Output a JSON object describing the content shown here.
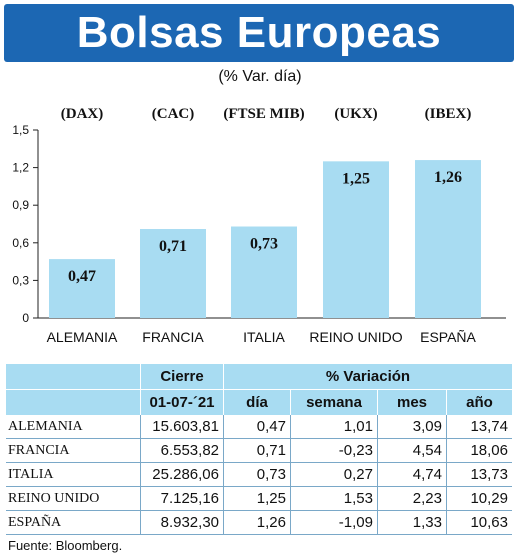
{
  "title": "Bolsas Europeas",
  "subtitle": "(% Var. día)",
  "chart_data": {
    "type": "bar",
    "title": "Bolsas Europeas",
    "subtitle": "(% Var. día)",
    "categories": [
      "ALEMANIA",
      "FRANCIA",
      "ITALIA",
      "REINO UNIDO",
      "ESPAÑA"
    ],
    "indices": [
      "(DAX)",
      "(CAC)",
      "(FTSE MIB)",
      "(UKX)",
      "(IBEX)"
    ],
    "values": [
      0.47,
      0.71,
      0.73,
      1.25,
      1.26
    ],
    "value_labels": [
      "0,47",
      "0,71",
      "0,73",
      "1,25",
      "1,26"
    ],
    "ylim": [
      0,
      1.5
    ],
    "yticks": [
      0,
      0.3,
      0.6,
      0.9,
      1.2,
      1.5
    ],
    "ytick_labels": [
      "0",
      "0,3",
      "0,6",
      "0,9",
      "1,2",
      "1,5"
    ],
    "bar_color": "#a8dcf2",
    "grid": false
  },
  "table": {
    "header_top": [
      "",
      "Cierre",
      "% Variación"
    ],
    "header_bottom": [
      "",
      "01-07-´21",
      "día",
      "semana",
      "mes",
      "año"
    ],
    "rows": [
      [
        "ALEMANIA",
        "15.603,81",
        "0,47",
        "1,01",
        "3,09",
        "13,74"
      ],
      [
        "FRANCIA",
        "6.553,82",
        "0,71",
        "-0,23",
        "4,54",
        "18,06"
      ],
      [
        "ITALIA",
        "25.286,06",
        "0,73",
        "0,27",
        "4,74",
        "13,73"
      ],
      [
        "REINO UNIDO",
        "7.125,16",
        "1,25",
        "1,53",
        "2,23",
        "10,29"
      ],
      [
        "ESPAÑA",
        "8.932,30",
        "1,26",
        "-1,09",
        "1,33",
        "10,63"
      ]
    ]
  },
  "source": "Fuente: Bloomberg.",
  "colors": {
    "banner": "#1c67b3",
    "bar": "#a8dcf2",
    "table_header": "#a8dcf2"
  }
}
